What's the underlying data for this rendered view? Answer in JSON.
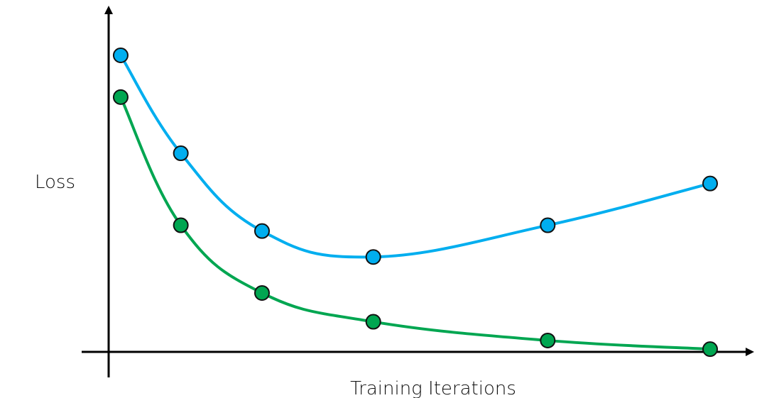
{
  "chart_data": {
    "type": "line",
    "xlabel": "Training Iterations",
    "ylabel": "Loss",
    "xlim": [
      0,
      100
    ],
    "ylim": [
      0,
      100
    ],
    "axes": {
      "arrows": true,
      "ticks": false,
      "grid": false
    },
    "series": [
      {
        "color": "#00AEEF",
        "x": [
          2,
          12,
          25.5,
          44,
          73,
          100
        ],
        "y": [
          100,
          66,
          39,
          30,
          41,
          55.5
        ]
      },
      {
        "color": "#00A651",
        "x": [
          2,
          12,
          25.5,
          44,
          73,
          100
        ],
        "y": [
          85.5,
          41,
          17.5,
          7.5,
          1,
          -2
        ]
      }
    ],
    "marker_edge_color": "#111111"
  }
}
